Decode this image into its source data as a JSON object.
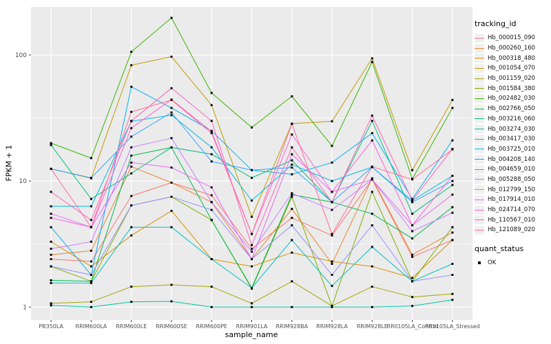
{
  "figure": {
    "bg": "#FFFFFF",
    "panel_bg": "#EBEBEB",
    "grid_color": "#FFFFFF",
    "axis_text_color": "#4D4D4D",
    "tick_mark_color": "#333333",
    "point_color": "#000000"
  },
  "legend": {
    "tracking_title": "tracking_id",
    "quant_title": "quant_status",
    "quant_items": [
      {
        "label": "OK",
        "marker": "black-square"
      }
    ]
  },
  "chart_data": {
    "type": "line",
    "title": "",
    "xlabel": "sample_name",
    "ylabel": "FPKM + 1",
    "x_categories": [
      "PB350LA",
      "RRIM600LA",
      "RRIM600LE",
      "RRIM600SE",
      "RRIM600PE",
      "RRIM901LA",
      "RRIM928BA",
      "RRIM928LA",
      "RRIM928LE",
      "RRII105LA_Control",
      "RRII105LA_Stressed"
    ],
    "y_scale": "log10",
    "y_ticks": [
      1,
      10,
      100
    ],
    "y_minor_ticks": [
      3.162,
      31.62
    ],
    "ylim": [
      0.79,
      241
    ],
    "grid": true,
    "legend_position": "right",
    "point_marker": "square",
    "series": [
      {
        "name": "Hb_000015_090",
        "color": "#F8766D",
        "values": [
          2.4,
          2.3,
          7.6,
          9.7,
          7.7,
          2.9,
          5.1,
          3.7,
          10.3,
          2.5,
          3.4
        ]
      },
      {
        "name": "Hb_000260_160",
        "color": "#EA8331",
        "values": [
          2.6,
          2.8,
          13.0,
          9.7,
          6.8,
          2.4,
          6.0,
          2.2,
          10.5,
          2.6,
          3.9
        ]
      },
      {
        "name": "Hb_000318_480",
        "color": "#D89000",
        "values": [
          3.3,
          2.1,
          3.7,
          5.8,
          2.4,
          2.1,
          2.7,
          2.3,
          2.1,
          1.7,
          3.4
        ]
      },
      {
        "name": "Hb_001054_070",
        "color": "#C09B00",
        "values": [
          12.5,
          10.5,
          83.0,
          97.0,
          40.0,
          5.2,
          28.5,
          29.8,
          94.0,
          12.2,
          44.0
        ]
      },
      {
        "name": "Hb_001159_020",
        "color": "#A3A500",
        "values": [
          1.07,
          1.1,
          1.45,
          1.5,
          1.45,
          1.07,
          1.6,
          1.02,
          1.45,
          1.2,
          1.27
        ]
      },
      {
        "name": "Hb_001584_380",
        "color": "#7CAE00",
        "values": [
          2.1,
          1.6,
          6.4,
          7.5,
          4.9,
          1.4,
          7.5,
          1.02,
          8.2,
          1.6,
          4.3
        ]
      },
      {
        "name": "Hb_002482_030",
        "color": "#39B600",
        "values": [
          20.0,
          15.2,
          106.0,
          197.0,
          50.0,
          26.6,
          47.0,
          19.0,
          88.0,
          10.4,
          38.0
        ]
      },
      {
        "name": "Hb_002766_050",
        "color": "#00BB4E",
        "values": [
          1.63,
          1.6,
          15.9,
          18.5,
          4.9,
          1.42,
          7.8,
          6.8,
          5.5,
          3.5,
          6.2
        ]
      },
      {
        "name": "Hb_003216_060",
        "color": "#00BF7D",
        "values": [
          19.3,
          7.2,
          11.5,
          18.5,
          16.3,
          10.6,
          14.6,
          6.8,
          30.0,
          5.5,
          9.3
        ]
      },
      {
        "name": "Hb_003274_030",
        "color": "#00C1A3",
        "values": [
          1.03,
          1.0,
          1.1,
          1.11,
          1.0,
          1.0,
          1.0,
          1.0,
          1.0,
          1.02,
          1.14
        ]
      },
      {
        "name": "Hb_003417_030",
        "color": "#00BFC4",
        "values": [
          1.55,
          1.55,
          4.3,
          4.3,
          2.4,
          1.42,
          3.4,
          1.47,
          3.0,
          1.6,
          2.2
        ]
      },
      {
        "name": "Hb_003725_010",
        "color": "#00BAE0",
        "values": [
          6.3,
          6.3,
          29.8,
          33.3,
          18.5,
          7.0,
          13.5,
          10.0,
          12.9,
          7.0,
          11.0
        ]
      },
      {
        "name": "Hb_004208_140",
        "color": "#00B0F6",
        "values": [
          4.3,
          1.8,
          56.0,
          38.0,
          25.0,
          12.2,
          11.3,
          14.0,
          24.0,
          7.2,
          21.0
        ]
      },
      {
        "name": "Hb_004659_010",
        "color": "#35A2FF",
        "values": [
          12.5,
          10.6,
          22.5,
          35.0,
          14.3,
          12.2,
          12.8,
          6.8,
          12.9,
          6.8,
          10.0
        ]
      },
      {
        "name": "Hb_005288_050",
        "color": "#9590FF",
        "values": [
          2.1,
          1.8,
          6.4,
          7.5,
          5.9,
          2.4,
          4.45,
          1.8,
          4.45,
          1.6,
          1.8
        ]
      },
      {
        "name": "Hb_012799_150",
        "color": "#C77CFF",
        "values": [
          2.9,
          3.3,
          18.5,
          21.9,
          6.8,
          2.75,
          8.0,
          5.9,
          10.3,
          4.0,
          5.6
        ]
      },
      {
        "name": "Hb_017914_010",
        "color": "#E76BF3",
        "values": [
          5.5,
          4.3,
          14.0,
          12.8,
          8.9,
          2.4,
          16.3,
          8.2,
          10.3,
          4.45,
          7.8
        ]
      },
      {
        "name": "Hb_024714_070",
        "color": "#FA62DB",
        "values": [
          5.1,
          4.3,
          26.3,
          44.3,
          24.7,
          3.8,
          23.4,
          8.2,
          21.0,
          4.45,
          11.0
        ]
      },
      {
        "name": "Hb_110567_010",
        "color": "#FF62BC",
        "values": [
          8.2,
          4.9,
          30.0,
          54.5,
          30.0,
          3.1,
          18.5,
          6.8,
          33.0,
          7.0,
          18.0
        ]
      },
      {
        "name": "Hb_121089_020",
        "color": "#FF6A98",
        "values": [
          12.5,
          4.3,
          35.4,
          44.0,
          24.0,
          3.8,
          28.4,
          3.8,
          13.0,
          10.3,
          17.8
        ]
      }
    ]
  }
}
